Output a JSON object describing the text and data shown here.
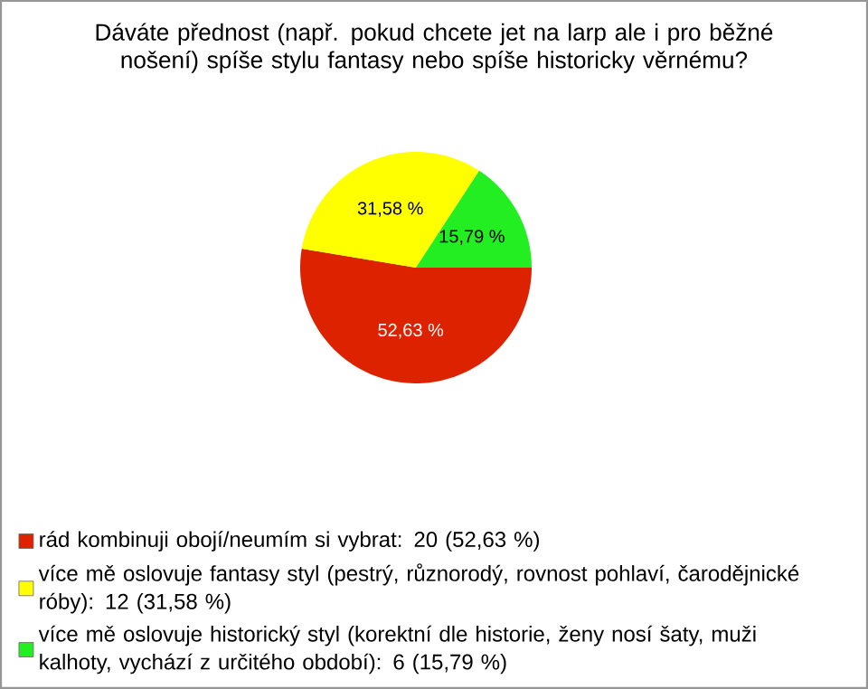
{
  "chart_data": {
    "type": "pie",
    "title": "Dáváte přednost (např. pokud chcete jet na larp ale i pro běžné nošení) spíše stylu fantasy nebo spíše historicky věrnému?",
    "categories": [
      "rád kombinuji obojí/neumím si vybrat: 20 (52,63 %)",
      "více mě oslovuje fantasy styl (pestrý, různorodý, rovnost pohlaví, čarodějnické róby): 12 (31,58 %)",
      "více mě oslovuje historický styl (korektní dle historie, ženy nosí šaty, muži kalhoty, vychází z určitého období): 6 (15,79 %)"
    ],
    "values": [
      52.63,
      31.58,
      15.79
    ],
    "value_labels": [
      "52,63 %",
      "31,58 %",
      "15,79 %"
    ],
    "colors": [
      "#dd2200",
      "#ffff00",
      "#22ee22"
    ],
    "legend": "bottom"
  }
}
